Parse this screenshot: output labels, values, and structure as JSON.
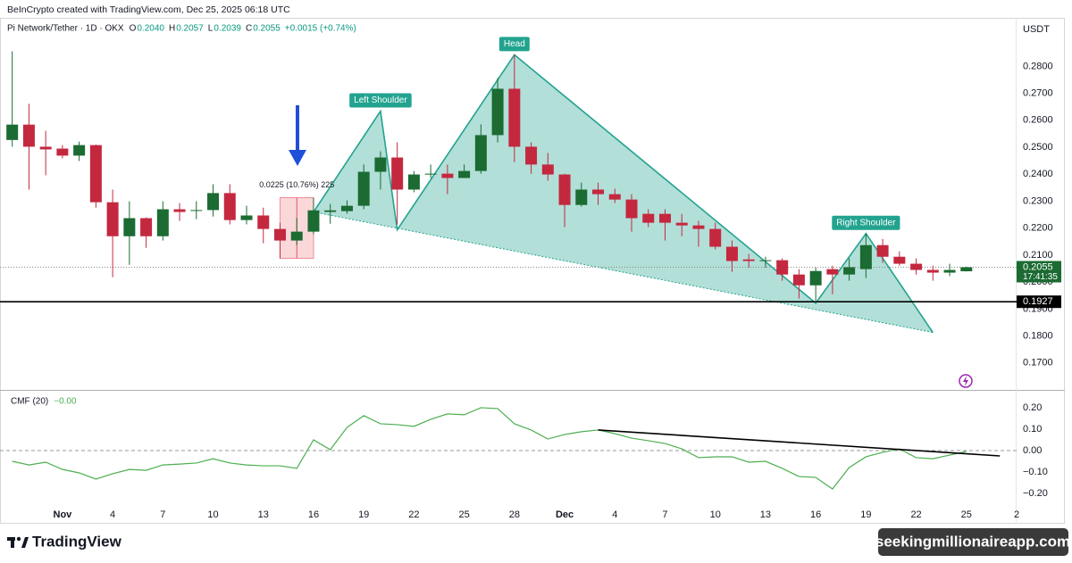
{
  "header": "BeInCrypto created with TradingView.com, Dec 25, 2025 06:18 UTC",
  "symbol": "Pi Network/Tether · 1D · OKX",
  "ohlc": [
    {
      "key": "O",
      "value": "0.2040"
    },
    {
      "key": "H",
      "value": "0.2057"
    },
    {
      "key": "L",
      "value": "0.2039"
    },
    {
      "key": "C",
      "value": "0.2055"
    }
  ],
  "change": "+0.0015 (+0.74%)",
  "currency": "USDT",
  "brand": "TradingView",
  "watermark": "seekingmillionaireapp.com",
  "chart_data": [
    {
      "type": "candlestick",
      "up_color": "#1b6b32",
      "down_color": "#c4283f",
      "open": [
        0.2527,
        0.2584,
        0.2502,
        0.2495,
        0.2469,
        0.2508,
        0.2296,
        0.217,
        0.2237,
        0.217,
        0.227,
        0.2264,
        0.2267,
        0.233,
        0.223,
        0.2247,
        0.2197,
        0.2154,
        0.2187,
        0.226,
        0.2263,
        0.2283,
        0.2409,
        0.2462,
        0.2343,
        0.2399,
        0.2402,
        0.2386,
        0.2412,
        0.2545,
        0.2717,
        0.2502,
        0.2436,
        0.2399,
        0.2286,
        0.2343,
        0.2326,
        0.2306,
        0.2253,
        0.2253,
        0.222,
        0.221,
        0.2197,
        0.2131,
        0.2084,
        0.2078,
        0.2081,
        0.2028,
        0.1988,
        0.2048,
        0.2028,
        0.2048,
        0.2137,
        0.2094,
        0.2068,
        0.2045,
        0.2035,
        0.204
      ],
      "high": [
        0.2856,
        0.2661,
        0.2561,
        0.2508,
        0.2521,
        0.251,
        0.2343,
        0.23,
        0.224,
        0.23,
        0.2293,
        0.23,
        0.2363,
        0.2363,
        0.2283,
        0.2276,
        0.222,
        0.2237,
        0.2313,
        0.229,
        0.2303,
        0.2436,
        0.2485,
        0.2518,
        0.2412,
        0.2436,
        0.2436,
        0.2436,
        0.2585,
        0.2757,
        0.2843,
        0.2518,
        0.2479,
        0.2402,
        0.2369,
        0.2369,
        0.2346,
        0.2326,
        0.227,
        0.227,
        0.2253,
        0.2227,
        0.222,
        0.2154,
        0.2104,
        0.2094,
        0.2088,
        0.2048,
        0.2054,
        0.2061,
        0.2088,
        0.218,
        0.216,
        0.2114,
        0.2088,
        0.2061,
        0.2068,
        0.2057
      ],
      "low": [
        0.2502,
        0.2343,
        0.2396,
        0.2459,
        0.2449,
        0.2276,
        0.2018,
        0.2064,
        0.2127,
        0.2154,
        0.2227,
        0.2233,
        0.2243,
        0.2214,
        0.2214,
        0.2144,
        0.2088,
        0.2137,
        0.2177,
        0.2216,
        0.2253,
        0.227,
        0.2343,
        0.2214,
        0.2333,
        0.2386,
        0.2326,
        0.2386,
        0.2402,
        0.2518,
        0.2445,
        0.2402,
        0.2376,
        0.2204,
        0.228,
        0.2286,
        0.2293,
        0.2187,
        0.2204,
        0.2154,
        0.217,
        0.2131,
        0.2121,
        0.2038,
        0.2054,
        0.2054,
        0.2005,
        0.1939,
        0.1922,
        0.1955,
        0.2005,
        0.2015,
        0.2071,
        0.2061,
        0.2028,
        0.2005,
        0.2022,
        0.2039
      ],
      "close": [
        0.2584,
        0.2502,
        0.2492,
        0.2469,
        0.2508,
        0.2296,
        0.217,
        0.2237,
        0.217,
        0.227,
        0.226,
        0.2267,
        0.233,
        0.223,
        0.2247,
        0.2197,
        0.2154,
        0.2187,
        0.2266,
        0.2266,
        0.2283,
        0.2409,
        0.2462,
        0.2343,
        0.2399,
        0.2402,
        0.2386,
        0.2412,
        0.2545,
        0.2717,
        0.2502,
        0.2436,
        0.2399,
        0.2286,
        0.2343,
        0.2326,
        0.2306,
        0.2237,
        0.222,
        0.222,
        0.221,
        0.2197,
        0.2131,
        0.2078,
        0.2078,
        0.2081,
        0.2028,
        0.1988,
        0.2041,
        0.2028,
        0.2055,
        0.2137,
        0.2094,
        0.2068,
        0.2045,
        0.2035,
        0.2045,
        0.2055
      ],
      "xlim": [
        -0.73,
        60
      ],
      "xticks": [
        {
          "value": 3,
          "label": "Nov"
        },
        {
          "value": 6,
          "label": "4"
        },
        {
          "value": 9,
          "label": "7"
        },
        {
          "value": 12,
          "label": "10"
        },
        {
          "value": 15,
          "label": "13"
        },
        {
          "value": 18,
          "label": "16"
        },
        {
          "value": 21,
          "label": "19"
        },
        {
          "value": 24,
          "label": "22"
        },
        {
          "value": 27,
          "label": "25"
        },
        {
          "value": 30,
          "label": "28"
        },
        {
          "value": 33,
          "label": "Dec"
        },
        {
          "value": 36,
          "label": "4"
        },
        {
          "value": 39,
          "label": "7"
        },
        {
          "value": 42,
          "label": "10"
        },
        {
          "value": 45,
          "label": "13"
        },
        {
          "value": 48,
          "label": "16"
        },
        {
          "value": 51,
          "label": "19"
        },
        {
          "value": 54,
          "label": "22"
        },
        {
          "value": 57,
          "label": "25"
        },
        {
          "value": 60,
          "label": "2"
        }
      ],
      "ylim": [
        0.16,
        0.298
      ],
      "yticks": [
        {
          "value": 0.17,
          "label": "0.1700"
        },
        {
          "value": 0.18,
          "label": "0.1800"
        },
        {
          "value": 0.19,
          "label": "0.1900"
        },
        {
          "value": 0.2,
          "label": "0.2000"
        },
        {
          "value": 0.21,
          "label": "0.2100"
        },
        {
          "value": 0.22,
          "label": "0.2200"
        },
        {
          "value": 0.23,
          "label": "0.2300"
        },
        {
          "value": 0.24,
          "label": "0.2400"
        },
        {
          "value": 0.25,
          "label": "0.2500"
        },
        {
          "value": 0.26,
          "label": "0.2600"
        },
        {
          "value": 0.27,
          "label": "0.2700"
        },
        {
          "value": 0.28,
          "label": "0.2800"
        }
      ],
      "grid": false,
      "pattern_color": "#22a38f",
      "pattern_points": [
        [
          18,
          0.226
        ],
        [
          22,
          0.2634
        ],
        [
          23,
          0.2194
        ],
        [
          30,
          0.2843
        ],
        [
          48,
          0.1922
        ],
        [
          51,
          0.218
        ],
        [
          55,
          0.1813
        ]
      ],
      "pattern_labels": [
        "Left Shoulder",
        "Head",
        "Right Shoulder"
      ],
      "measure": {
        "x": [
          16,
          18
        ],
        "y": [
          0.2088,
          0.2313
        ],
        "text": "0.0225 (10.76%) 225"
      },
      "hline": {
        "value": 0.1927,
        "label": "0.1927"
      },
      "last_price": {
        "value": 0.2055,
        "label": "0.2055",
        "countdown": "17:41:35"
      }
    },
    {
      "type": "line",
      "title": "CMF (20)",
      "current": "−0.00",
      "color": "#4caf50",
      "values": [
        -0.05,
        -0.067,
        -0.054,
        -0.088,
        -0.104,
        -0.133,
        -0.108,
        -0.088,
        -0.092,
        -0.067,
        -0.063,
        -0.058,
        -0.038,
        -0.058,
        -0.067,
        -0.071,
        -0.071,
        -0.083,
        0.05,
        0.004,
        0.108,
        0.163,
        0.125,
        0.121,
        0.113,
        0.146,
        0.171,
        0.167,
        0.2,
        0.196,
        0.125,
        0.096,
        0.054,
        0.075,
        0.088,
        0.096,
        0.079,
        0.058,
        0.046,
        0.033,
        0.008,
        -0.033,
        -0.029,
        -0.029,
        -0.054,
        -0.05,
        -0.083,
        -0.121,
        -0.125,
        -0.179,
        -0.079,
        -0.029,
        -0.008,
        0.008,
        -0.033,
        -0.038,
        -0.021,
        -0.004
      ],
      "xlim": [
        -0.73,
        60
      ],
      "ylim": [
        -0.258,
        0.283
      ],
      "yticks": [
        {
          "value": -0.2,
          "label": "−0.20"
        },
        {
          "value": -0.1,
          "label": "−0.10"
        },
        {
          "value": 0,
          "label": "0.00"
        },
        {
          "value": 0.1,
          "label": "0.10"
        },
        {
          "value": 0.2,
          "label": "0.20"
        }
      ],
      "reference_line": 0,
      "trendline": [
        [
          35,
          0.096
        ],
        [
          59,
          -0.025
        ]
      ]
    }
  ]
}
